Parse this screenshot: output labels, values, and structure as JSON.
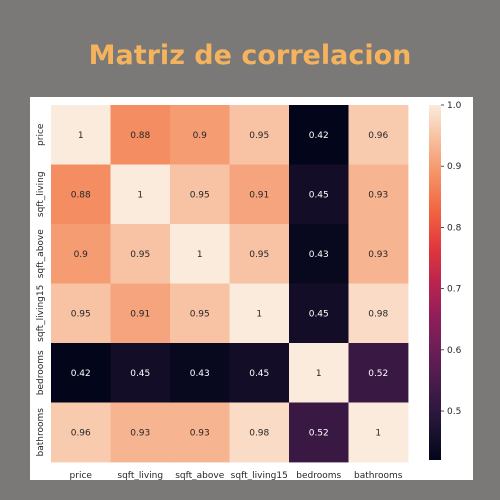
{
  "title": "Matriz de correlacion",
  "chart_data": {
    "type": "heatmap",
    "variables": [
      "price",
      "sqft_living",
      "sqft_above",
      "sqft_living15",
      "bedrooms",
      "bathrooms"
    ],
    "values": [
      [
        1,
        0.88,
        0.9,
        0.95,
        0.42,
        0.96
      ],
      [
        0.88,
        1,
        0.95,
        0.91,
        0.45,
        0.93
      ],
      [
        0.9,
        0.95,
        1,
        0.95,
        0.43,
        0.93
      ],
      [
        0.95,
        0.91,
        0.95,
        1,
        0.45,
        0.98
      ],
      [
        0.42,
        0.45,
        0.43,
        0.45,
        1,
        0.52
      ],
      [
        0.96,
        0.93,
        0.93,
        0.98,
        0.52,
        1
      ]
    ],
    "colorbar": {
      "min": 0.42,
      "max": 1.0,
      "ticks": [
        "0.5",
        "0.6",
        "0.7",
        "0.8",
        "0.9",
        "1.0"
      ],
      "colormap": "rocket"
    }
  }
}
